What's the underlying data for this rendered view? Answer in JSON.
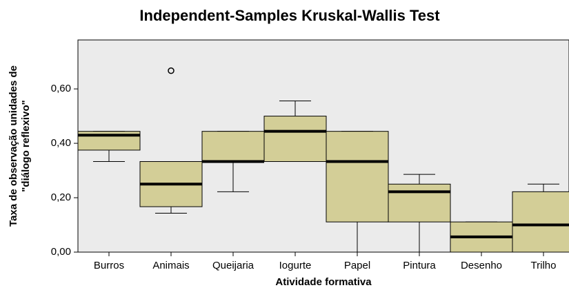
{
  "chart_data": {
    "type": "box",
    "title": "Independent-Samples Kruskal-Wallis Test",
    "x_label": "Atividade formativa",
    "y_label": [
      "Taxa de observação unidades de",
      "\"diálogo reflexivo\""
    ],
    "categories": [
      "Burros",
      "Animais",
      "Queijaria",
      "Iogurte",
      "Papel",
      "Pintura",
      "Desenho",
      "Trilho"
    ],
    "boxes": [
      {
        "min": 0.333,
        "q1": 0.375,
        "median": 0.43,
        "q3": 0.444,
        "max": 0.444,
        "outliers": []
      },
      {
        "min": 0.143,
        "q1": 0.167,
        "median": 0.25,
        "q3": 0.333,
        "max": 0.333,
        "outliers": [
          0.667
        ]
      },
      {
        "min": 0.222,
        "q1": 0.333,
        "median": 0.333,
        "q3": 0.444,
        "max": 0.444,
        "outliers": []
      },
      {
        "min": 0.333,
        "q1": 0.333,
        "median": 0.444,
        "q3": 0.5,
        "max": 0.556,
        "outliers": []
      },
      {
        "min": 0,
        "q1": 0.111,
        "median": 0.333,
        "q3": 0.444,
        "max": 0.444,
        "outliers": []
      },
      {
        "min": 0,
        "q1": 0.111,
        "median": 0.222,
        "q3": 0.25,
        "max": 0.286,
        "outliers": []
      },
      {
        "min": 0,
        "q1": 0,
        "median": 0.056,
        "q3": 0.111,
        "max": 0.111,
        "outliers": []
      },
      {
        "min": 0,
        "q1": 0,
        "median": 0.1,
        "q3": 0.222,
        "max": 0.25,
        "outliers": []
      }
    ],
    "color": "#d3ce97",
    "ylim": [
      0,
      0.78
    ],
    "yticks": [
      {
        "value": 0,
        "label": "0,00"
      },
      {
        "value": 0.2,
        "label": "0,20"
      },
      {
        "value": 0.4,
        "label": "0,40"
      },
      {
        "value": 0.6,
        "label": "0,60"
      }
    ]
  }
}
